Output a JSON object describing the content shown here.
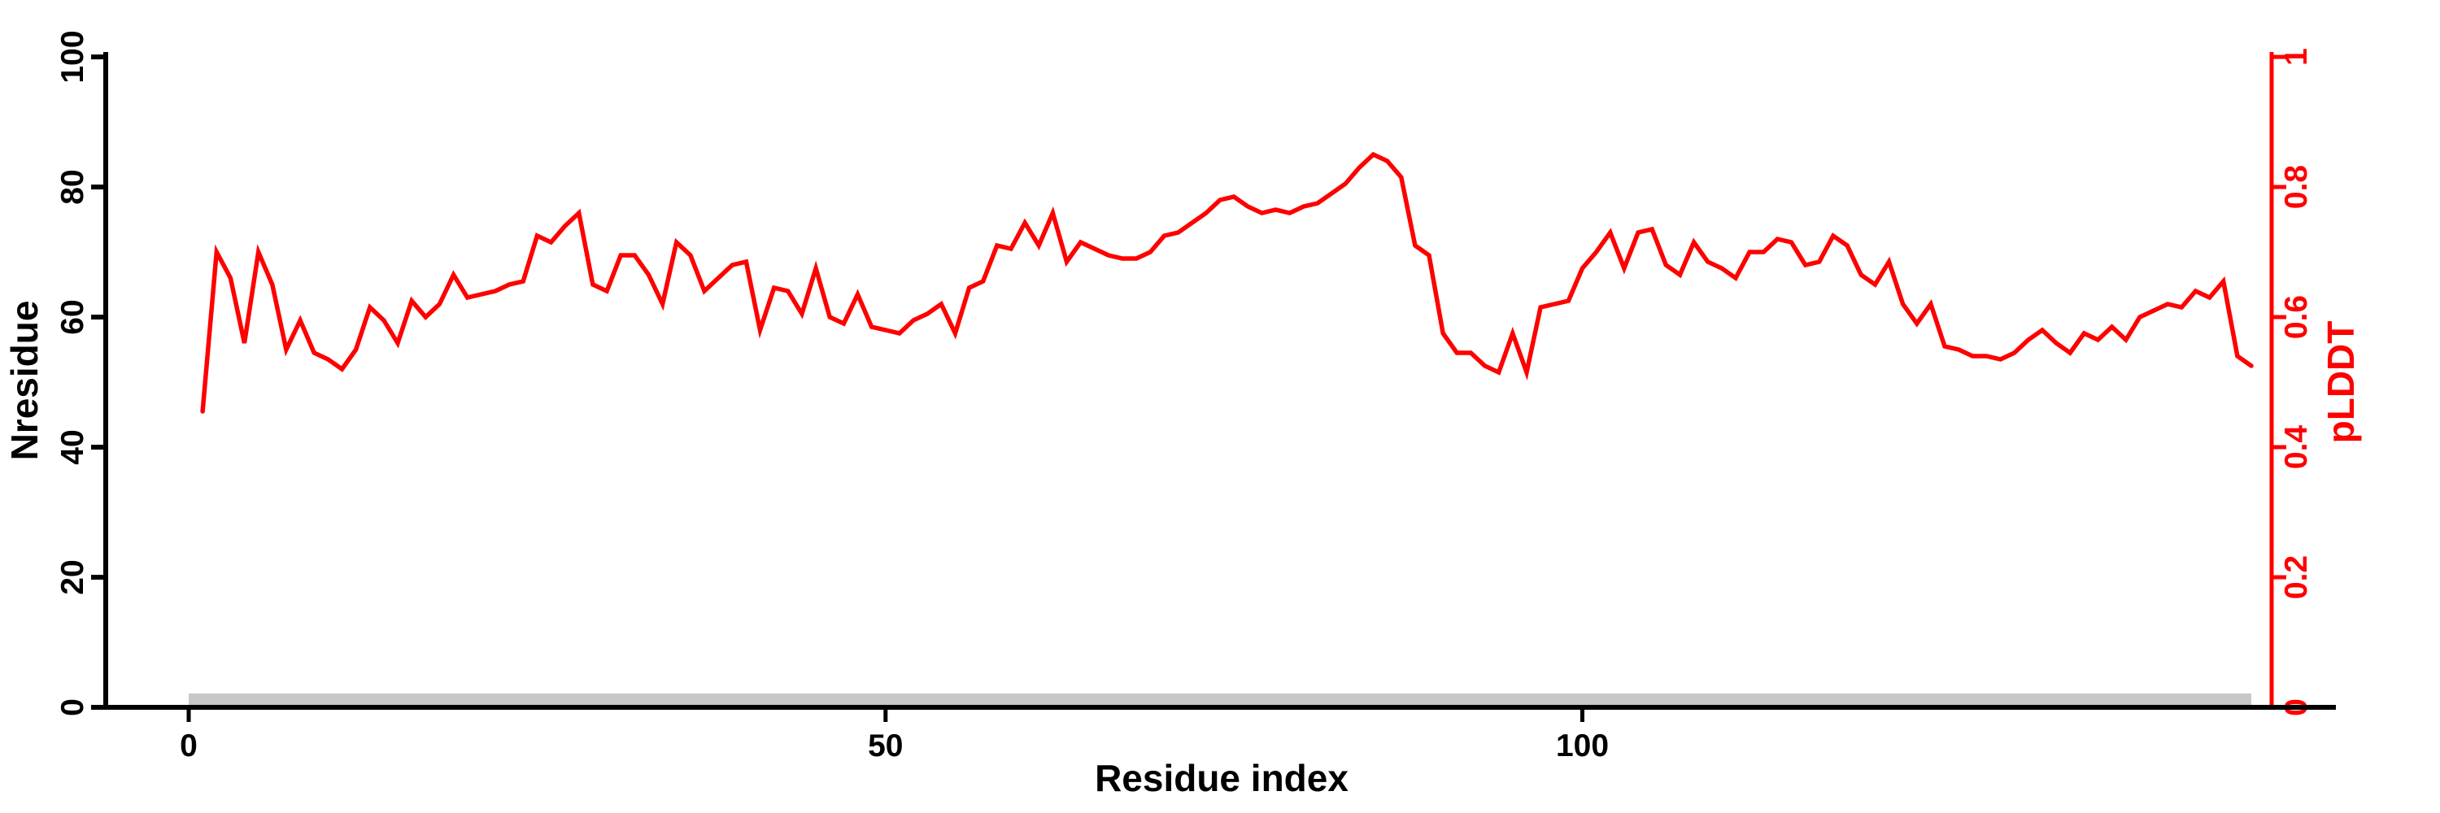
{
  "page": {
    "background": "#ffffff"
  },
  "chart_data": {
    "type": "line",
    "title": "",
    "xlabel": "Residue index",
    "grid": false,
    "legend": false,
    "x_range": [
      0,
      148
    ],
    "x_ticks": {
      "values": [
        0,
        50,
        100
      ],
      "labels": [
        "0",
        "50",
        "100"
      ]
    },
    "left_axis": {
      "label": "Nresidue",
      "color": "#000000",
      "range": [
        0,
        100
      ],
      "ticks": [
        0,
        20,
        40,
        60,
        80,
        100
      ],
      "tick_labels": [
        "0",
        "20",
        "40",
        "60",
        "80",
        "100"
      ]
    },
    "right_axis": {
      "label": "pLDDT",
      "color": "#ff0000",
      "range": [
        0,
        1
      ],
      "ticks": [
        0,
        0.2,
        0.4,
        0.6,
        0.8,
        1
      ],
      "tick_labels": [
        "0",
        "0.2",
        "0.4",
        "0.6",
        "0.8",
        "1"
      ]
    },
    "series": [
      {
        "name": "pLDDT",
        "axis": "right",
        "color": "#ff0000",
        "line_width": 5.5,
        "x_start_residue": 1,
        "values": [
          0.455,
          0.7,
          0.66,
          0.56,
          0.7,
          0.65,
          0.55,
          0.595,
          0.545,
          0.535,
          0.52,
          0.55,
          0.615,
          0.595,
          0.56,
          0.625,
          0.6,
          0.62,
          0.665,
          0.63,
          0.635,
          0.64,
          0.65,
          0.655,
          0.725,
          0.715,
          0.74,
          0.76,
          0.65,
          0.64,
          0.695,
          0.695,
          0.665,
          0.62,
          0.715,
          0.695,
          0.64,
          0.66,
          0.68,
          0.685,
          0.58,
          0.645,
          0.64,
          0.605,
          0.675,
          0.6,
          0.59,
          0.635,
          0.585,
          0.58,
          0.575,
          0.595,
          0.605,
          0.62,
          0.575,
          0.645,
          0.655,
          0.71,
          0.705,
          0.745,
          0.71,
          0.76,
          0.685,
          0.715,
          0.705,
          0.695,
          0.69,
          0.69,
          0.7,
          0.725,
          0.73,
          0.745,
          0.76,
          0.78,
          0.785,
          0.77,
          0.76,
          0.765,
          0.76,
          0.77,
          0.775,
          0.79,
          0.805,
          0.83,
          0.85,
          0.84,
          0.815,
          0.71,
          0.695,
          0.575,
          0.545,
          0.545,
          0.525,
          0.515,
          0.575,
          0.515,
          0.615,
          0.62,
          0.625,
          0.675,
          0.7,
          0.73,
          0.675,
          0.73,
          0.735,
          0.68,
          0.665,
          0.715,
          0.685,
          0.675,
          0.66,
          0.7,
          0.7,
          0.72,
          0.715,
          0.68,
          0.685,
          0.725,
          0.71,
          0.665,
          0.65,
          0.685,
          0.62,
          0.59,
          0.62,
          0.555,
          0.55,
          0.54,
          0.54,
          0.535,
          0.545,
          0.565,
          0.58,
          0.56,
          0.545,
          0.575,
          0.565,
          0.585,
          0.565,
          0.6,
          0.61,
          0.62,
          0.615,
          0.64,
          0.63,
          0.655,
          0.54,
          0.525
        ]
      }
    ],
    "annotations": [
      {
        "name": "residue-range-bar",
        "type": "rect",
        "x_from_residue": 0,
        "x_to_residue": 148,
        "color": "#c8c8c8"
      }
    ]
  }
}
